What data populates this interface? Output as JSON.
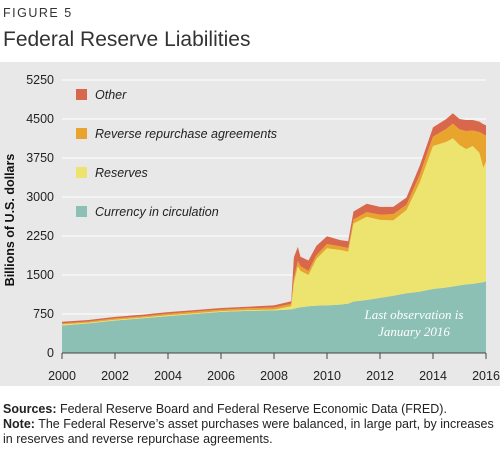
{
  "figure_label": "FIGURE 5",
  "title": "Federal Reserve Liabilities",
  "chart_data": {
    "type": "area",
    "stacked": true,
    "ylabel": "Billions of U.S. dollars",
    "xlabel": "",
    "ylim": [
      0,
      5250
    ],
    "xlim": [
      2000,
      2016
    ],
    "yticks": [
      0,
      750,
      1500,
      2250,
      3000,
      3750,
      4500,
      5250
    ],
    "xticks": [
      2000,
      2002,
      2004,
      2006,
      2008,
      2010,
      2012,
      2014,
      2016
    ],
    "grid": "horizontal",
    "legend_position": "top-left",
    "annotation": [
      "Last observation is",
      "January 2016"
    ],
    "x": [
      2000.0,
      2001.0,
      2002.0,
      2003.0,
      2004.0,
      2005.0,
      2006.0,
      2007.0,
      2008.0,
      2008.65,
      2008.75,
      2008.9,
      2009.0,
      2009.3,
      2009.6,
      2010.0,
      2010.5,
      2010.8,
      2011.0,
      2011.5,
      2012.0,
      2012.5,
      2013.0,
      2013.5,
      2014.0,
      2014.5,
      2014.75,
      2015.0,
      2015.25,
      2015.5,
      2015.75,
      2015.9,
      2016.0
    ],
    "series": [
      {
        "name": "Currency in circulation",
        "color": "#8cc0b5",
        "values": [
          530,
          570,
          625,
          665,
          710,
          750,
          790,
          810,
          820,
          840,
          850,
          870,
          880,
          900,
          910,
          915,
          930,
          950,
          990,
          1020,
          1060,
          1100,
          1150,
          1180,
          1230,
          1260,
          1280,
          1300,
          1320,
          1330,
          1350,
          1360,
          1380
        ]
      },
      {
        "name": "Reserves",
        "color": "#ede46f",
        "values": [
          20,
          15,
          15,
          15,
          15,
          15,
          15,
          15,
          15,
          60,
          500,
          800,
          700,
          600,
          900,
          1100,
          1050,
          1000,
          1500,
          1600,
          1500,
          1450,
          1600,
          2100,
          2750,
          2800,
          2850,
          2700,
          2600,
          2650,
          2500,
          2200,
          2300
        ]
      },
      {
        "name": "Reverse repurchase agreements",
        "color": "#e8a42c",
        "values": [
          20,
          20,
          25,
          25,
          30,
          30,
          30,
          35,
          40,
          45,
          90,
          100,
          90,
          80,
          70,
          80,
          70,
          70,
          80,
          90,
          100,
          120,
          100,
          150,
          180,
          250,
          280,
          300,
          350,
          300,
          400,
          650,
          500
        ]
      },
      {
        "name": "Other",
        "color": "#d9674b",
        "values": [
          30,
          30,
          30,
          30,
          30,
          30,
          30,
          30,
          40,
          50,
          400,
          270,
          180,
          200,
          180,
          150,
          120,
          130,
          150,
          160,
          150,
          140,
          140,
          170,
          180,
          190,
          200,
          200,
          210,
          200,
          200,
          190,
          200
        ]
      }
    ]
  },
  "notes": {
    "sources_label": "Sources:",
    "sources_text": " Federal Reserve Board and Federal Reserve Economic Data (FRED).",
    "note_label": "Note:",
    "note_text": " The Federal Reserve’s asset purchases were balanced, in large part, by increases in reserves and reverse repurchase agreements."
  }
}
